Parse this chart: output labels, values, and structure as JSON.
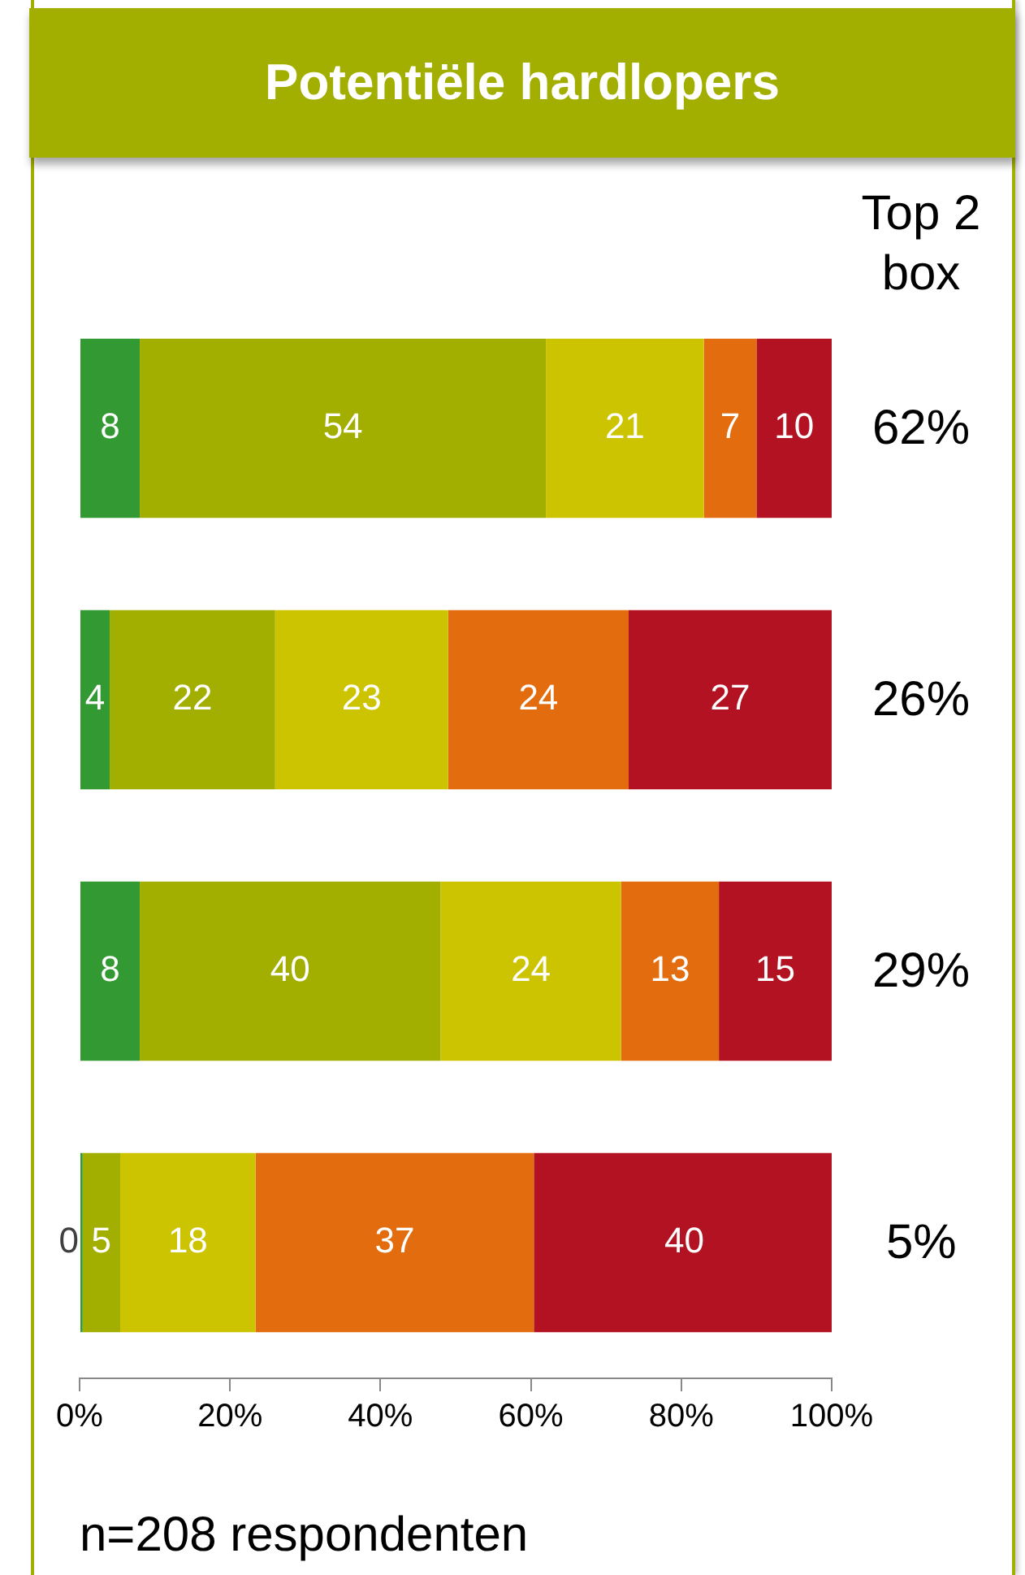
{
  "chart_data": {
    "type": "bar",
    "orientation": "horizontal",
    "stacked": true,
    "title": "Potentiële hardlopers",
    "categories": [
      null,
      null,
      null,
      null
    ],
    "series": [
      {
        "color": "#339933",
        "values": [
          8,
          4,
          8,
          0.4
        ],
        "value_labels": [
          "8",
          "4",
          "8",
          "0"
        ]
      },
      {
        "color": "#a3af00",
        "values": [
          54,
          22,
          40,
          5
        ],
        "value_labels": [
          "54",
          "22",
          "40",
          "5"
        ]
      },
      {
        "color": "#ccc400",
        "values": [
          21,
          23,
          24,
          18
        ],
        "value_labels": [
          "21",
          "23",
          "24",
          "18"
        ]
      },
      {
        "color": "#e36c0e",
        "values": [
          7,
          24,
          13,
          37
        ],
        "value_labels": [
          "7",
          "24",
          "13",
          "37"
        ]
      },
      {
        "color": "#b31222",
        "values": [
          10,
          27,
          15,
          40
        ],
        "value_labels": [
          "10",
          "27",
          "15",
          "40"
        ]
      }
    ],
    "xlim": [
      0,
      100
    ],
    "xticks": [
      {
        "value": 0,
        "label": "0%"
      },
      {
        "value": 20,
        "label": "20%"
      },
      {
        "value": 40,
        "label": "40%"
      },
      {
        "value": 60,
        "label": "60%"
      },
      {
        "value": 80,
        "label": "80%"
      },
      {
        "value": 100,
        "label": "100%"
      }
    ],
    "grid": false,
    "legend": false,
    "tick_labels": "x",
    "annotations": [
      "Top 2 box",
      "62%",
      "26%",
      "29%",
      "5%",
      "n=208 respondenten"
    ]
  }
}
